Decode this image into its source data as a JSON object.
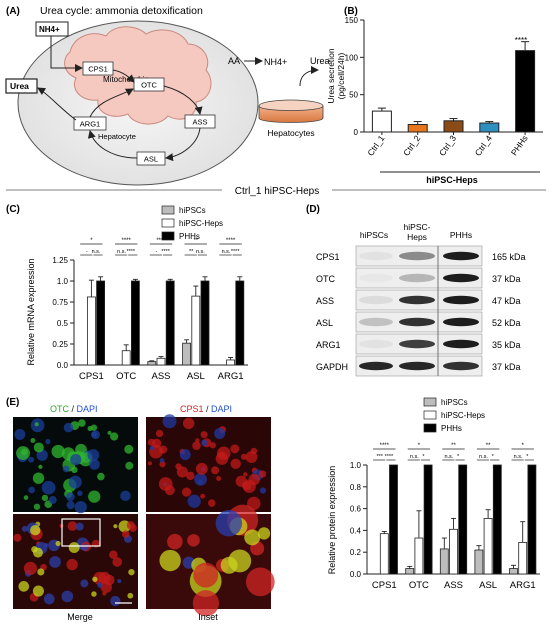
{
  "panel_A": {
    "letter": "(A)",
    "title": "Urea cycle: ammonia detoxification",
    "nh4_box": "NH4+",
    "urea_box": "Urea",
    "mito_label": "Mitochondria",
    "hepatocyte_label": "Hepatocyte",
    "enzymes": [
      "CPS1",
      "OTC",
      "ASS",
      "ASL",
      "ARG1"
    ],
    "reaction": {
      "substrate": "AA",
      "nh4": "NH4+",
      "product": "Urea",
      "cells": "Hepatocytes"
    }
  },
  "panel_B": {
    "letter": "(B)",
    "group_label": "hiPSC-Heps",
    "significance": "****"
  },
  "divider_label": "Ctrl_1 hiPSC-Heps",
  "panel_C": {
    "letter": "(C)",
    "legend": [
      "hiPSCs",
      "hiPSC-Heps",
      "PHHs"
    ]
  },
  "panel_D": {
    "letter": "(D)",
    "columns": [
      "hiPSCs",
      "hiPSC-\nHeps",
      "PHHs"
    ],
    "rows": [
      {
        "protein": "CPS1",
        "size": "165 kDa"
      },
      {
        "protein": "OTC",
        "size": "37 kDa"
      },
      {
        "protein": "ASS",
        "size": "47 kDa"
      },
      {
        "protein": "ASL",
        "size": "52 kDa"
      },
      {
        "protein": "ARG1",
        "size": "35 kDa"
      },
      {
        "protein": "GAPDH",
        "size": "37 kDa"
      }
    ]
  },
  "panel_E": {
    "letter": "(E)",
    "otc_label": "OTC",
    "cps1_label": "CPS1",
    "dapi_label": "DAPI",
    "slash": " / ",
    "merge_label": "Merge",
    "inset_label": "Inset",
    "legend": [
      "hiPSCs",
      "hiPSC-Heps",
      "PHHs"
    ]
  },
  "colors": {
    "ctrl1": "#ffffff",
    "ctrl2": "#e8761c",
    "ctrl3": "#8a4b17",
    "ctrl4": "#2f8fbf",
    "phh": "#000000",
    "hipsc": "#bdbdbd",
    "otc_green": "#2aa82a",
    "cps1_red": "#d32020",
    "dapi_blue": "#1f4fd6"
  },
  "chart_data": [
    {
      "panel": "B",
      "type": "bar",
      "categories": [
        "Ctrl_1",
        "Ctrl_2",
        "Ctrl_3",
        "Ctrl_4",
        "PHHs"
      ],
      "values": [
        28,
        10,
        15,
        12,
        109
      ],
      "errors": [
        4,
        4,
        3,
        2,
        12
      ],
      "colors": [
        "#ffffff",
        "#e8761c",
        "#8a4b17",
        "#2f8fbf",
        "#000000"
      ],
      "ylabel": "Urea secretion\n(pg/cell/24h)",
      "ylim": [
        0,
        150
      ],
      "yticks": [
        0,
        50,
        100,
        150
      ]
    },
    {
      "panel": "C",
      "type": "bar",
      "categories": [
        "CPS1",
        "OTC",
        "ASS",
        "ASL",
        "ARG1"
      ],
      "ylabel": "Relative mRNA expression",
      "ylim": [
        0,
        1.25
      ],
      "yticks": [
        0.0,
        0.25,
        0.5,
        0.75,
        1.0,
        1.25
      ],
      "ytick_labels": [
        "0.0",
        "0.25",
        "0.5",
        "0.75",
        "1.0",
        "1.25"
      ],
      "series": [
        {
          "name": "hiPSCs",
          "values": [
            0.0,
            0.0,
            0.04,
            0.26,
            0.0
          ],
          "errors": [
            0.0,
            0.0,
            0.01,
            0.04,
            0.0
          ]
        },
        {
          "name": "hiPSC-Heps",
          "values": [
            0.81,
            0.17,
            0.08,
            0.82,
            0.06
          ],
          "errors": [
            0.2,
            0.07,
            0.02,
            0.12,
            0.03
          ]
        },
        {
          "name": "PHHs",
          "values": [
            1.0,
            1.0,
            1.0,
            1.0,
            1.0
          ],
          "errors": [
            0.05,
            0.02,
            0.02,
            0.05,
            0.05
          ]
        }
      ],
      "sig_top": [
        "*",
        "****",
        "****",
        "**",
        "****"
      ],
      "sig_left": [
        "-",
        "n.s.",
        "-",
        "**",
        "n.s."
      ],
      "sig_right": [
        "n.s.",
        "****",
        "****",
        "n.s.",
        "****"
      ]
    },
    {
      "panel": "E",
      "type": "bar",
      "categories": [
        "CPS1",
        "OTC",
        "ASS",
        "ASL",
        "ARG1"
      ],
      "ylabel": "Relative protein expression",
      "ylim": [
        0,
        1.0
      ],
      "yticks": [
        0.0,
        0.2,
        0.4,
        0.6,
        0.8,
        1.0
      ],
      "ytick_labels": [
        "0.0",
        "0.2",
        "0.4",
        "0.6",
        "0.8",
        "1.0"
      ],
      "series": [
        {
          "name": "hiPSCs",
          "values": [
            0.0,
            0.05,
            0.23,
            0.22,
            0.05
          ],
          "errors": [
            0.0,
            0.02,
            0.1,
            0.04,
            0.03
          ]
        },
        {
          "name": "hiPSC-Heps",
          "values": [
            0.37,
            0.33,
            0.41,
            0.51,
            0.29
          ],
          "errors": [
            0.02,
            0.25,
            0.1,
            0.08,
            0.19
          ]
        },
        {
          "name": "PHHs",
          "values": [
            1.0,
            1.0,
            1.0,
            1.0,
            1.0
          ],
          "errors": [
            0,
            0,
            0,
            0,
            0
          ]
        }
      ],
      "sig_top": [
        "****",
        "*",
        "**",
        "**",
        "*"
      ],
      "sig_left": [
        "***",
        "n.s.",
        "n.s.",
        "n.s.",
        "n.s."
      ],
      "sig_right": [
        "****",
        "*",
        "*",
        "*",
        "*"
      ]
    }
  ]
}
